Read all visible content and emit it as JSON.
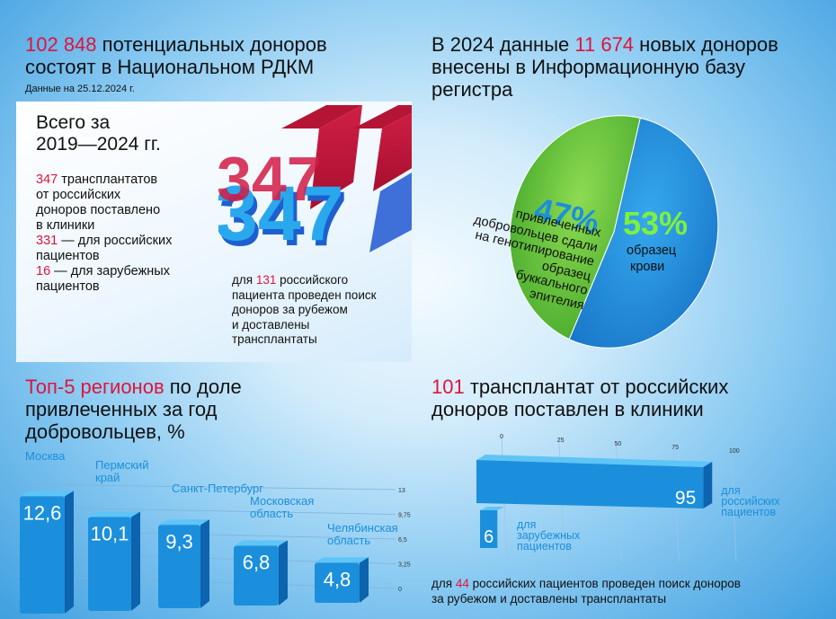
{
  "donors": {
    "count": "102 848",
    "text_line1": "потенциальных доноров",
    "text_line2": "состоят в Национальном РДКМ",
    "date_note": "Данные на 25.12.2024 г."
  },
  "totals": {
    "heading_line1": "Всего за",
    "heading_line2": "2019—2024 гг.",
    "count": "347",
    "line1": "трансплантатов",
    "line2": "от российских",
    "line3": "доноров поставлено",
    "line4": "в клиники",
    "ru_count": "331",
    "ru_text": "— для российских",
    "ru_text2": "пациентов",
    "foreign_count": "16",
    "foreign_text": "— для зарубежных",
    "foreign_text2": "пациентов",
    "big_number": "347",
    "abroad_prefix": "для",
    "abroad_count": "131",
    "abroad_line1": "российского",
    "abroad_line2": "пациента проведен поиск",
    "abroad_line3": "доноров за рубежом",
    "abroad_line4": "и доставлены",
    "abroad_line5": "трансплантаты"
  },
  "new_donors": {
    "prefix": "В 2024 данные",
    "count": "11 674",
    "suffix": "новых доноров",
    "line2": "внесены в Информационную базу",
    "line3": "регистра"
  },
  "regions": {
    "title_highlight": "Топ-5 регионов",
    "title_rest1": "по доле",
    "title_line2": "привлеченных за год",
    "title_line3": "добровольцев, %"
  },
  "transplants_2024": {
    "count": "101",
    "title_rest": "трансплантат от российских",
    "title_line2": "доноров поставлен в клиники",
    "footnote_prefix": "для",
    "footnote_count": "44",
    "footnote_rest": "российских пациентов проведен поиск доноров",
    "footnote_line2": "за рубежом и доставлены трансплантаты"
  },
  "chart_data": [
    {
      "type": "pie",
      "slices": [
        {
          "label_lines": [
            "образец",
            "крови"
          ],
          "value": 53,
          "display": "53%",
          "color": "#1b8fdc"
        },
        {
          "label_lines": [
            "привлеченных",
            "добровольцев сдали",
            "на генотипирование",
            "образец",
            "буккального",
            "эпителия"
          ],
          "value": 47,
          "display": "47%",
          "color": "#5cc23a"
        }
      ]
    },
    {
      "type": "bar",
      "categories": [
        "Москва",
        "Пермский край",
        "Санкт-Петербург",
        "Московская область",
        "Челябинская область"
      ],
      "category_lines": [
        [
          "Москва"
        ],
        [
          "Пермский",
          "край"
        ],
        [
          "Санкт-Петербург"
        ],
        [
          "Московская",
          "область"
        ],
        [
          "Челябинская",
          "область"
        ]
      ],
      "values": [
        12.6,
        10.1,
        9.3,
        6.8,
        4.8
      ],
      "value_labels": [
        "12,6",
        "10,1",
        "9,3",
        "6,8",
        "4,8"
      ],
      "ylim": [
        0,
        13
      ],
      "ticks": [
        "0",
        "3,25",
        "6,5",
        "9,75",
        "13"
      ],
      "color": "#1b8fdc"
    },
    {
      "type": "bar",
      "orientation": "horizontal",
      "series": [
        {
          "value": 95,
          "display": "95",
          "label_lines": [
            "для",
            "российских",
            "пациентов"
          ]
        },
        {
          "value": 6,
          "display": "6",
          "label_lines": [
            "для",
            "зарубежных",
            "пациентов"
          ]
        }
      ],
      "xlim": [
        0,
        100
      ],
      "ticks": [
        "0",
        "25",
        "50",
        "75",
        "100"
      ],
      "color": "#1b8fdc"
    }
  ]
}
